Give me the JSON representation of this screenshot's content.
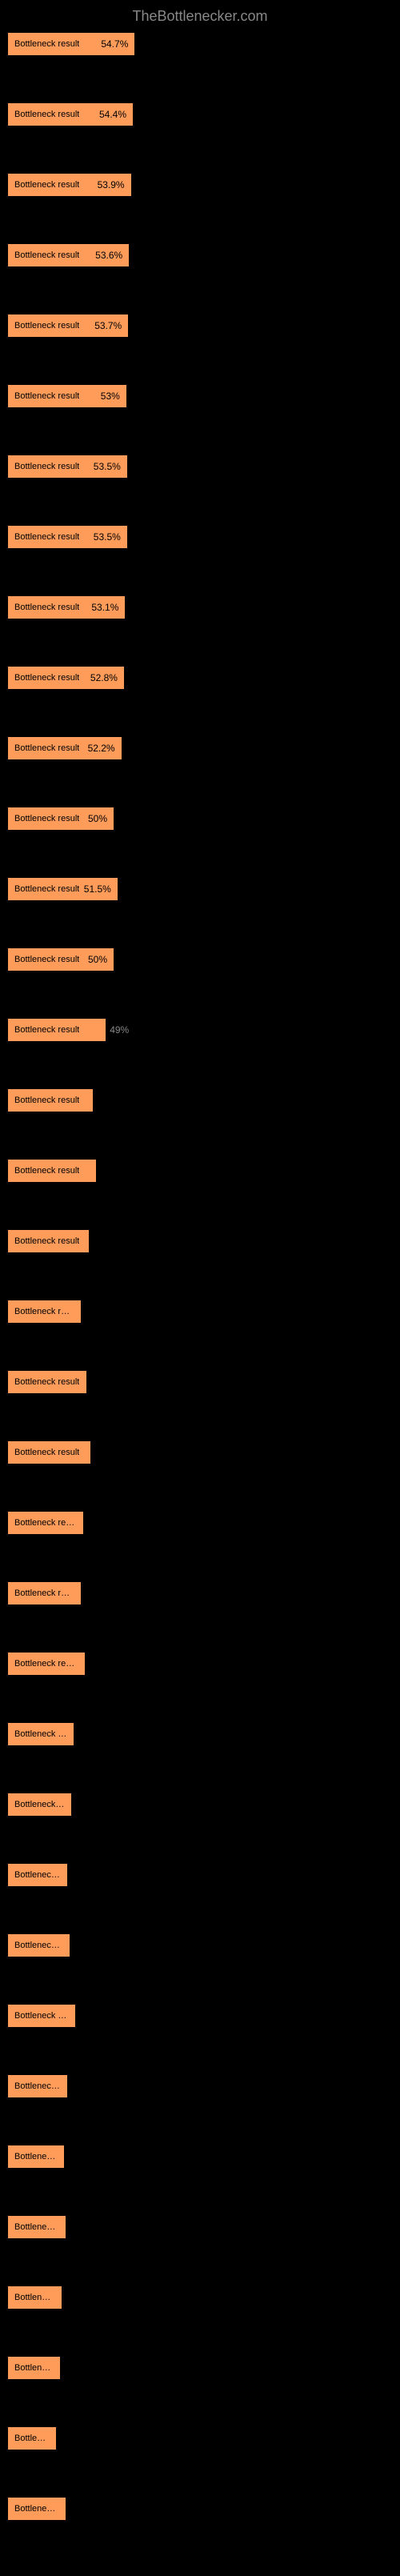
{
  "title": "TheBottlenecker.com",
  "chart": {
    "type": "bar",
    "background_color": "#000000",
    "bar_color": "#ff9c5a",
    "text_color_inside": "#000000",
    "text_color_outside": "#888888",
    "max_width_percent": 100,
    "bars": [
      {
        "label": "Bottleneck result",
        "value": "54.7%",
        "width": 33.0
      },
      {
        "label": "Bottleneck result",
        "value": "54.4%",
        "width": 32.5
      },
      {
        "label": "Bottleneck result",
        "value": "53.9%",
        "width": 32.0
      },
      {
        "label": "Bottleneck result",
        "value": "53.6%",
        "width": 31.5
      },
      {
        "label": "Bottleneck result",
        "value": "53.7%",
        "width": 31.3
      },
      {
        "label": "Bottleneck result",
        "value": "53%",
        "width": 30.8
      },
      {
        "label": "Bottleneck result",
        "value": "53.5%",
        "width": 31.0
      },
      {
        "label": "Bottleneck result",
        "value": "53.5%",
        "width": 31.0
      },
      {
        "label": "Bottleneck result",
        "value": "53.1%",
        "width": 30.5
      },
      {
        "label": "Bottleneck result",
        "value": "52.8%",
        "width": 30.2
      },
      {
        "label": "Bottleneck result",
        "value": "52.2%",
        "width": 29.5
      },
      {
        "label": "Bottleneck result",
        "value": "50%",
        "width": 27.5
      },
      {
        "label": "Bottleneck result",
        "value": "51.5%",
        "width": 28.5
      },
      {
        "label": "Bottleneck result",
        "value": "50%",
        "width": 27.5
      },
      {
        "label": "Bottleneck result",
        "value": "49%",
        "width": 25.5
      },
      {
        "label": "Bottleneck result",
        "value": "",
        "width": 22.0
      },
      {
        "label": "Bottleneck result",
        "value": "",
        "width": 23.0
      },
      {
        "label": "Bottleneck result",
        "value": "",
        "width": 21.0
      },
      {
        "label": "Bottleneck result",
        "value": "",
        "width": 19.0
      },
      {
        "label": "Bottleneck result",
        "value": "",
        "width": 20.5
      },
      {
        "label": "Bottleneck result",
        "value": "",
        "width": 21.5
      },
      {
        "label": "Bottleneck result",
        "value": "",
        "width": 19.5
      },
      {
        "label": "Bottleneck result",
        "value": "",
        "width": 19.0
      },
      {
        "label": "Bottleneck result",
        "value": "",
        "width": 20.0
      },
      {
        "label": "Bottleneck result",
        "value": "",
        "width": 17.0
      },
      {
        "label": "Bottleneck result",
        "value": "",
        "width": 16.5
      },
      {
        "label": "Bottleneck result",
        "value": "",
        "width": 15.5
      },
      {
        "label": "Bottleneck result",
        "value": "",
        "width": 16.0
      },
      {
        "label": "Bottleneck result",
        "value": "",
        "width": 17.5
      },
      {
        "label": "Bottleneck result",
        "value": "",
        "width": 15.5
      },
      {
        "label": "Bottleneck result",
        "value": "",
        "width": 14.5
      },
      {
        "label": "Bottleneck result",
        "value": "",
        "width": 15.0
      },
      {
        "label": "Bottleneck result",
        "value": "",
        "width": 14.0
      },
      {
        "label": "Bottleneck result",
        "value": "",
        "width": 13.5
      },
      {
        "label": "Bottleneck result",
        "value": "",
        "width": 12.5
      },
      {
        "label": "Bottleneck result",
        "value": "",
        "width": 15.0
      }
    ]
  }
}
